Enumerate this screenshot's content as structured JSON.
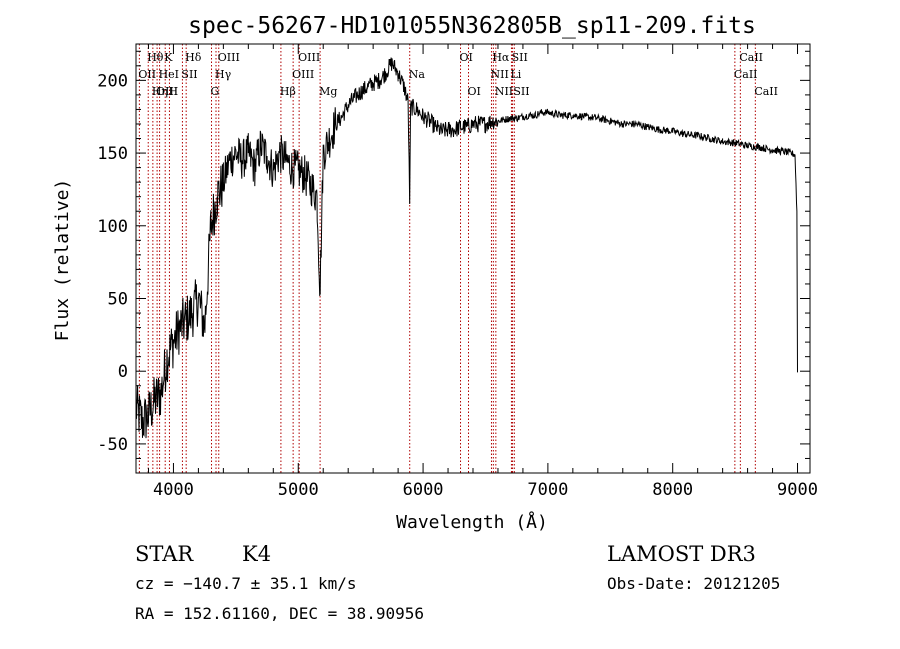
{
  "chart_data": {
    "type": "line",
    "title": "spec-56267-HD101055N362805B_sp11-209.fits",
    "xlabel": "Wavelength (Å)",
    "ylabel": "Flux (relative)",
    "xlim": [
      3700,
      9100
    ],
    "ylim": [
      -70,
      225
    ],
    "xticks": [
      4000,
      5000,
      6000,
      7000,
      8000,
      9000
    ],
    "yticks": [
      -50,
      0,
      50,
      100,
      150,
      200
    ],
    "grid": false,
    "series": [
      {
        "x": [
          3700,
          3750,
          3800,
          3850,
          3900,
          3950,
          4000,
          4050,
          4100,
          4150,
          4200,
          4250,
          4300,
          4350,
          4400,
          4450,
          4500,
          4550,
          4600,
          4650,
          4700,
          4750,
          4800,
          4850,
          4900,
          4950,
          5000,
          5050,
          5100,
          5150,
          5175,
          5200,
          5250,
          5300,
          5350,
          5400,
          5450,
          5500,
          5550,
          5600,
          5650,
          5700,
          5750,
          5800,
          5850,
          5880,
          5893,
          5900,
          5950,
          6000,
          6050,
          6100,
          6150,
          6200,
          6250,
          6300,
          6350,
          6400,
          6450,
          6500,
          6550,
          6600,
          6650,
          6700,
          6750,
          6800,
          6850,
          6900,
          6950,
          7000,
          7100,
          7200,
          7300,
          7400,
          7500,
          7600,
          7700,
          7800,
          7900,
          8000,
          8100,
          8200,
          8300,
          8400,
          8500,
          8600,
          8700,
          8800,
          8900,
          8980,
          8995,
          9000
        ],
        "y": [
          -25,
          -35,
          -30,
          -20,
          -15,
          10,
          20,
          30,
          35,
          40,
          50,
          30,
          100,
          120,
          130,
          145,
          150,
          145,
          150,
          140,
          155,
          148,
          138,
          150,
          145,
          140,
          138,
          135,
          128,
          120,
          55,
          150,
          160,
          170,
          175,
          183,
          188,
          192,
          195,
          198,
          200,
          205,
          212,
          205,
          195,
          185,
          115,
          182,
          180,
          175,
          172,
          168,
          165,
          166,
          166,
          168,
          168,
          170,
          170,
          170,
          172,
          172,
          173,
          174,
          174,
          175,
          176,
          176,
          178,
          178,
          176,
          176,
          175,
          174,
          172,
          170,
          170,
          168,
          166,
          165,
          163,
          162,
          160,
          158,
          157,
          155,
          154,
          152,
          151,
          149,
          110,
          0
        ]
      }
    ],
    "lines": [
      {
        "name": "Hθ",
        "x": 3798,
        "row": 1
      },
      {
        "name": "OII",
        "x": 3727,
        "row": 2
      },
      {
        "name": "OIII",
        "x": 3869,
        "row": 3
      },
      {
        "name": "Hη",
        "x": 3835,
        "row": 3
      },
      {
        "name": "HeI",
        "x": 3889,
        "row": 2
      },
      {
        "name": "K",
        "x": 3934,
        "row": 1
      },
      {
        "name": "H",
        "x": 3968,
        "row": 3
      },
      {
        "name": "SII",
        "x": 4072,
        "row": 2
      },
      {
        "name": "Hδ",
        "x": 4102,
        "row": 1
      },
      {
        "name": "G",
        "x": 4305,
        "row": 3
      },
      {
        "name": "Hγ",
        "x": 4341,
        "row": 2
      },
      {
        "name": "OIII",
        "x": 4363,
        "row": 1
      },
      {
        "name": "Hβ",
        "x": 4861,
        "row": 3
      },
      {
        "name": "OIII",
        "x": 4959,
        "row": 2
      },
      {
        "name": "OIII",
        "x": 5007,
        "row": 1
      },
      {
        "name": "Mg",
        "x": 5175,
        "row": 3
      },
      {
        "name": "Na",
        "x": 5893,
        "row": 2
      },
      {
        "name": "OI",
        "x": 6300,
        "row": 1
      },
      {
        "name": "OI",
        "x": 6364,
        "row": 3
      },
      {
        "name": "NII",
        "x": 6548,
        "row": 2
      },
      {
        "name": "Hα",
        "x": 6563,
        "row": 1
      },
      {
        "name": "NII",
        "x": 6583,
        "row": 3
      },
      {
        "name": "Li",
        "x": 6708,
        "row": 2
      },
      {
        "name": "SII",
        "x": 6717,
        "row": 1
      },
      {
        "name": "SII",
        "x": 6731,
        "row": 3
      },
      {
        "name": "CaII",
        "x": 8498,
        "row": 2
      },
      {
        "name": "CaII",
        "x": 8542,
        "row": 1
      },
      {
        "name": "CaII",
        "x": 8662,
        "row": 3
      }
    ]
  },
  "info": {
    "class": "STAR",
    "subclass": "K4",
    "survey": "LAMOST DR3",
    "cz": "cz = −140.7 ± 35.1 km/s",
    "obs_date": "Obs-Date: 20121205",
    "coords": "RA = 152.61160, DEC =  38.90956"
  },
  "colors": {
    "spectrum": "#000000",
    "line_marker": "#b00000"
  }
}
